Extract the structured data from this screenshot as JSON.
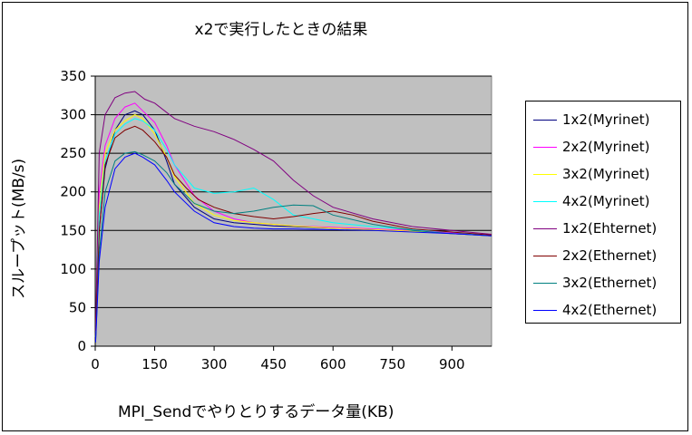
{
  "chart_data": {
    "type": "line",
    "title": "x2で実行したときの結果",
    "xlabel": "MPI_Sendでやりとりするデータ量(KB)",
    "ylabel": "スループット(MB/s)",
    "xlim": [
      0,
      1000
    ],
    "ylim": [
      0,
      350
    ],
    "xticks": [
      0,
      150,
      300,
      450,
      600,
      750,
      900
    ],
    "yticks": [
      0,
      50,
      100,
      150,
      200,
      250,
      300,
      350
    ],
    "grid": "horizontal",
    "plot_background": "#c0c0c0",
    "legend_position": "right",
    "series": [
      {
        "name": "1x2(Myrinet)",
        "color": "#000080",
        "x": [
          1,
          10,
          25,
          50,
          75,
          100,
          120,
          150,
          180,
          200,
          250,
          300,
          350,
          400,
          450,
          500,
          600,
          700,
          800,
          900,
          1000
        ],
        "y": [
          10,
          150,
          230,
          280,
          300,
          305,
          300,
          280,
          240,
          210,
          180,
          165,
          160,
          158,
          156,
          155,
          153,
          151,
          149,
          146,
          143
        ]
      },
      {
        "name": "2x2(Myrinet)",
        "color": "#ff00ff",
        "x": [
          1,
          10,
          25,
          50,
          75,
          100,
          120,
          150,
          180,
          200,
          250,
          300,
          350,
          400,
          450,
          500,
          600,
          700,
          800,
          900,
          1000
        ],
        "y": [
          15,
          200,
          260,
          295,
          310,
          315,
          305,
          290,
          260,
          235,
          195,
          175,
          165,
          160,
          158,
          156,
          154,
          152,
          150,
          147,
          143
        ]
      },
      {
        "name": "3x2(Myrinet)",
        "color": "#ffff00",
        "x": [
          1,
          10,
          25,
          50,
          75,
          100,
          120,
          150,
          180,
          200,
          250,
          300,
          350,
          400,
          450,
          500,
          600,
          700,
          800,
          900,
          1000
        ],
        "y": [
          12,
          180,
          250,
          280,
          292,
          300,
          295,
          275,
          245,
          220,
          185,
          170,
          163,
          160,
          158,
          156,
          153,
          151,
          149,
          146,
          143
        ]
      },
      {
        "name": "4x2(Myrinet)",
        "color": "#00ffff",
        "x": [
          1,
          10,
          25,
          50,
          75,
          100,
          120,
          150,
          180,
          200,
          250,
          300,
          350,
          400,
          450,
          500,
          600,
          700,
          800,
          900,
          1000
        ],
        "y": [
          12,
          170,
          240,
          275,
          288,
          295,
          292,
          280,
          255,
          235,
          205,
          198,
          200,
          205,
          190,
          170,
          160,
          155,
          151,
          148,
          143
        ]
      },
      {
        "name": "1x2(Ehternet)",
        "color": "#800080",
        "x": [
          1,
          10,
          25,
          50,
          75,
          100,
          125,
          150,
          175,
          200,
          250,
          300,
          350,
          400,
          450,
          500,
          550,
          600,
          700,
          800,
          900,
          1000
        ],
        "y": [
          20,
          250,
          300,
          322,
          328,
          330,
          320,
          315,
          305,
          295,
          285,
          278,
          268,
          255,
          240,
          215,
          195,
          180,
          165,
          155,
          150,
          145
        ]
      },
      {
        "name": "2x2(Ethernet)",
        "color": "#800000",
        "x": [
          1,
          10,
          25,
          50,
          75,
          100,
          120,
          150,
          180,
          200,
          230,
          260,
          300,
          350,
          400,
          450,
          500,
          550,
          600,
          650,
          700,
          800,
          900,
          1000
        ],
        "y": [
          8,
          150,
          235,
          270,
          280,
          285,
          280,
          265,
          245,
          222,
          205,
          190,
          180,
          172,
          168,
          165,
          168,
          172,
          175,
          170,
          162,
          152,
          148,
          144
        ]
      },
      {
        "name": "3x2(Ethernet)",
        "color": "#008080",
        "x": [
          1,
          10,
          25,
          50,
          75,
          100,
          120,
          150,
          180,
          200,
          250,
          300,
          350,
          400,
          450,
          500,
          550,
          600,
          700,
          800,
          900,
          1000
        ],
        "y": [
          5,
          120,
          200,
          240,
          250,
          252,
          248,
          240,
          225,
          210,
          185,
          175,
          172,
          175,
          180,
          183,
          182,
          170,
          158,
          150,
          146,
          143
        ]
      },
      {
        "name": "4x2(Ethernet)",
        "color": "#0000ff",
        "x": [
          1,
          10,
          25,
          50,
          75,
          100,
          120,
          150,
          180,
          200,
          250,
          300,
          350,
          400,
          450,
          500,
          600,
          700,
          800,
          900,
          1000
        ],
        "y": [
          5,
          110,
          180,
          230,
          245,
          250,
          245,
          235,
          215,
          200,
          175,
          160,
          155,
          153,
          152,
          152,
          151,
          150,
          148,
          146,
          143
        ]
      }
    ]
  }
}
